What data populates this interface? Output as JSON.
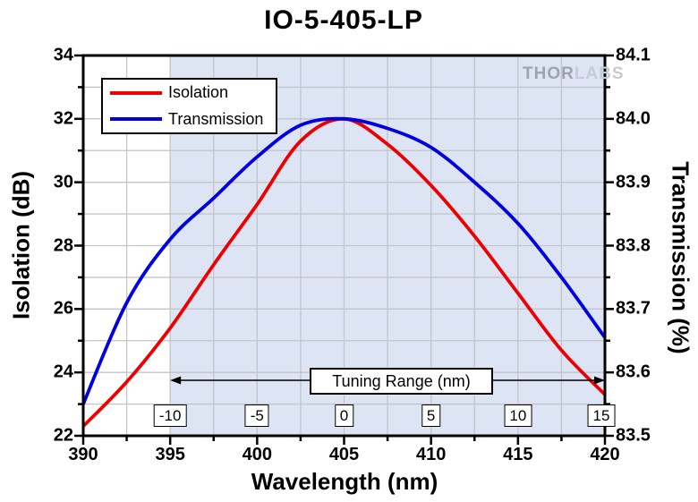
{
  "title": "IO-5-405-LP",
  "watermark": {
    "part1": "THOR",
    "part2": "LABS"
  },
  "chart_data": {
    "type": "line",
    "title": "IO-5-405-LP",
    "xlabel": "Wavelength (nm)",
    "ylabel_left": "Isolation (dB)",
    "ylabel_right": "Transmission (%)",
    "x_range": [
      390,
      420
    ],
    "y_left_range": [
      22,
      34
    ],
    "y_right_range": [
      83.5,
      84.1
    ],
    "x_tick_labels": [
      "390",
      "395",
      "400",
      "405",
      "410",
      "415",
      "420"
    ],
    "y_left_tick_labels": [
      "22",
      "24",
      "26",
      "28",
      "30",
      "32",
      "34"
    ],
    "y_right_tick_labels": [
      "83.5",
      "83.6",
      "83.7",
      "83.8",
      "83.9",
      "84.0",
      "84.1"
    ],
    "grid": {
      "x_step_nm": 2.5,
      "y_left_step_db": 1,
      "color": "#c3c5ca",
      "on": true
    },
    "shaded_region": {
      "x_from_nm": 395,
      "x_to_nm": 420,
      "color": "#dde4f4"
    },
    "frame_color": "#000000",
    "x_nm": [
      390,
      392.5,
      395,
      397.5,
      400,
      402.5,
      405,
      407.5,
      410,
      412.5,
      415,
      417.5,
      420
    ],
    "series": [
      {
        "name": "Isolation",
        "axis": "left",
        "unit": "dB",
        "color": "#ed0000",
        "values": [
          22.3,
          23.7,
          25.4,
          27.4,
          29.3,
          31.3,
          32.0,
          31.2,
          29.9,
          28.3,
          26.5,
          24.7,
          23.3
        ]
      },
      {
        "name": "Transmission",
        "axis": "right",
        "unit": "%",
        "color": "#0000e0",
        "values": [
          83.55,
          83.71,
          83.81,
          83.875,
          83.94,
          83.99,
          84.0,
          83.985,
          83.955,
          83.9,
          83.835,
          83.75,
          83.655
        ]
      }
    ],
    "tuning_scale": {
      "label": "Tuning Range (nm)",
      "tick_labels": [
        "-10",
        "-5",
        "0",
        "5",
        "10",
        "15"
      ],
      "tick_positions_nm": [
        395,
        400,
        405,
        410,
        415,
        420
      ]
    },
    "legend_position": "top-left"
  }
}
